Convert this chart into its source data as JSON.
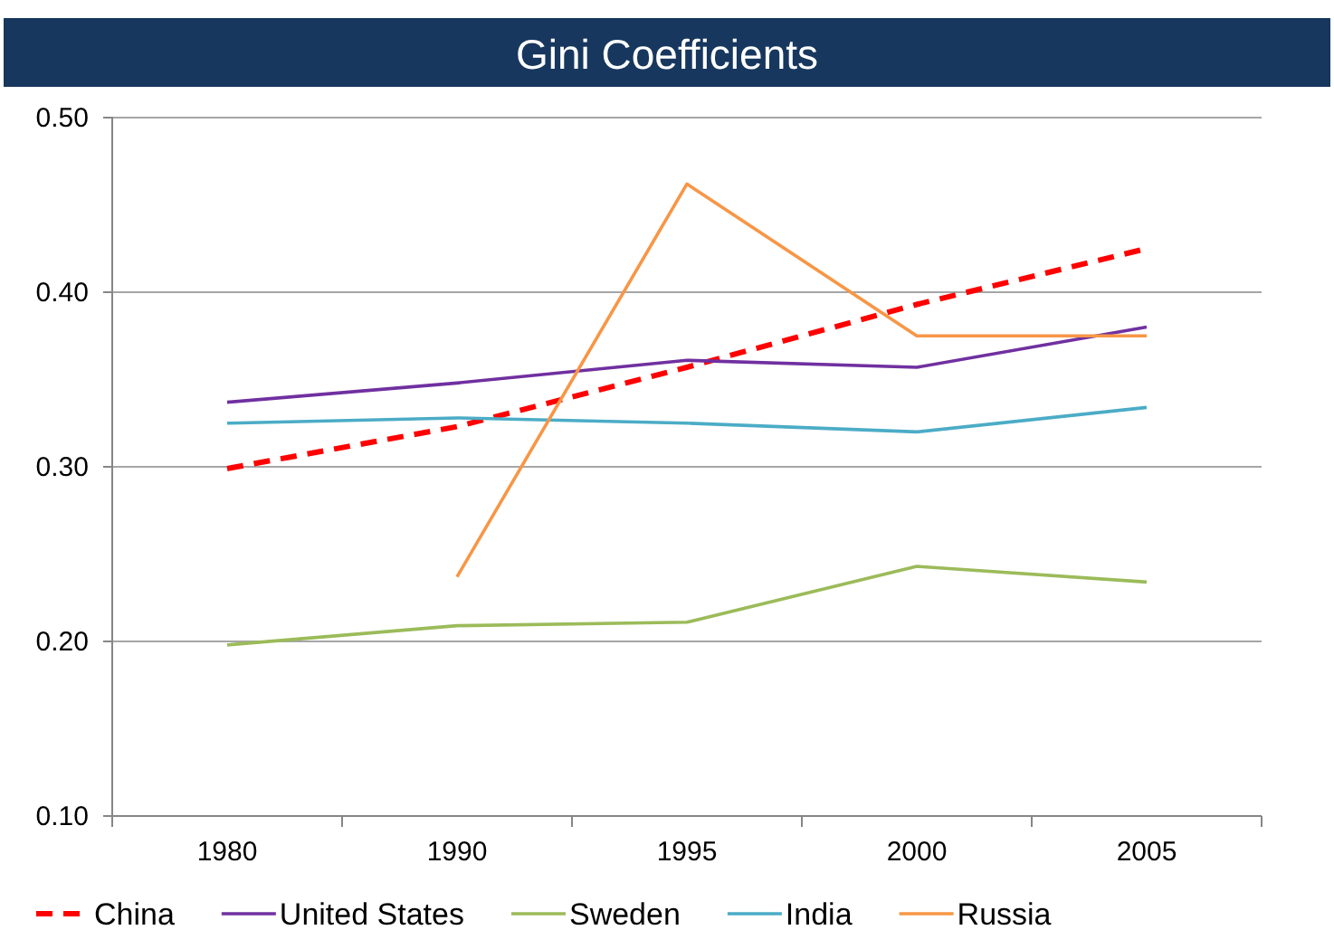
{
  "chart_data": {
    "type": "line",
    "title": "Gini Coefficients",
    "categories": [
      "1980",
      "1990",
      "1995",
      "2000",
      "2005"
    ],
    "ylim": [
      0.1,
      0.5
    ],
    "yticks": [
      {
        "value": 0.1,
        "label": "0.10"
      },
      {
        "value": 0.2,
        "label": "0.20"
      },
      {
        "value": 0.3,
        "label": "0.30"
      },
      {
        "value": 0.4,
        "label": "0.40"
      },
      {
        "value": 0.5,
        "label": "0.50"
      }
    ],
    "grid": "y",
    "legend": "bottom",
    "marker": "none",
    "line_style": "solid",
    "series": [
      {
        "name": "China",
        "color": "#ff0000",
        "line_style": "dashed",
        "values": [
          0.299,
          0.323,
          0.357,
          0.393,
          0.425
        ]
      },
      {
        "name": "United States",
        "color": "#7030a0",
        "values": [
          0.337,
          0.348,
          0.361,
          0.357,
          0.38
        ]
      },
      {
        "name": "Sweden",
        "color": "#9bbb59",
        "values": [
          0.198,
          0.209,
          0.211,
          0.243,
          0.234
        ]
      },
      {
        "name": "India",
        "color": "#4bacc6",
        "values": [
          0.325,
          0.328,
          0.325,
          0.32,
          0.334
        ]
      },
      {
        "name": "Russia",
        "color": "#f79646",
        "values": [
          null,
          0.237,
          0.462,
          0.375,
          0.375
        ]
      }
    ]
  }
}
